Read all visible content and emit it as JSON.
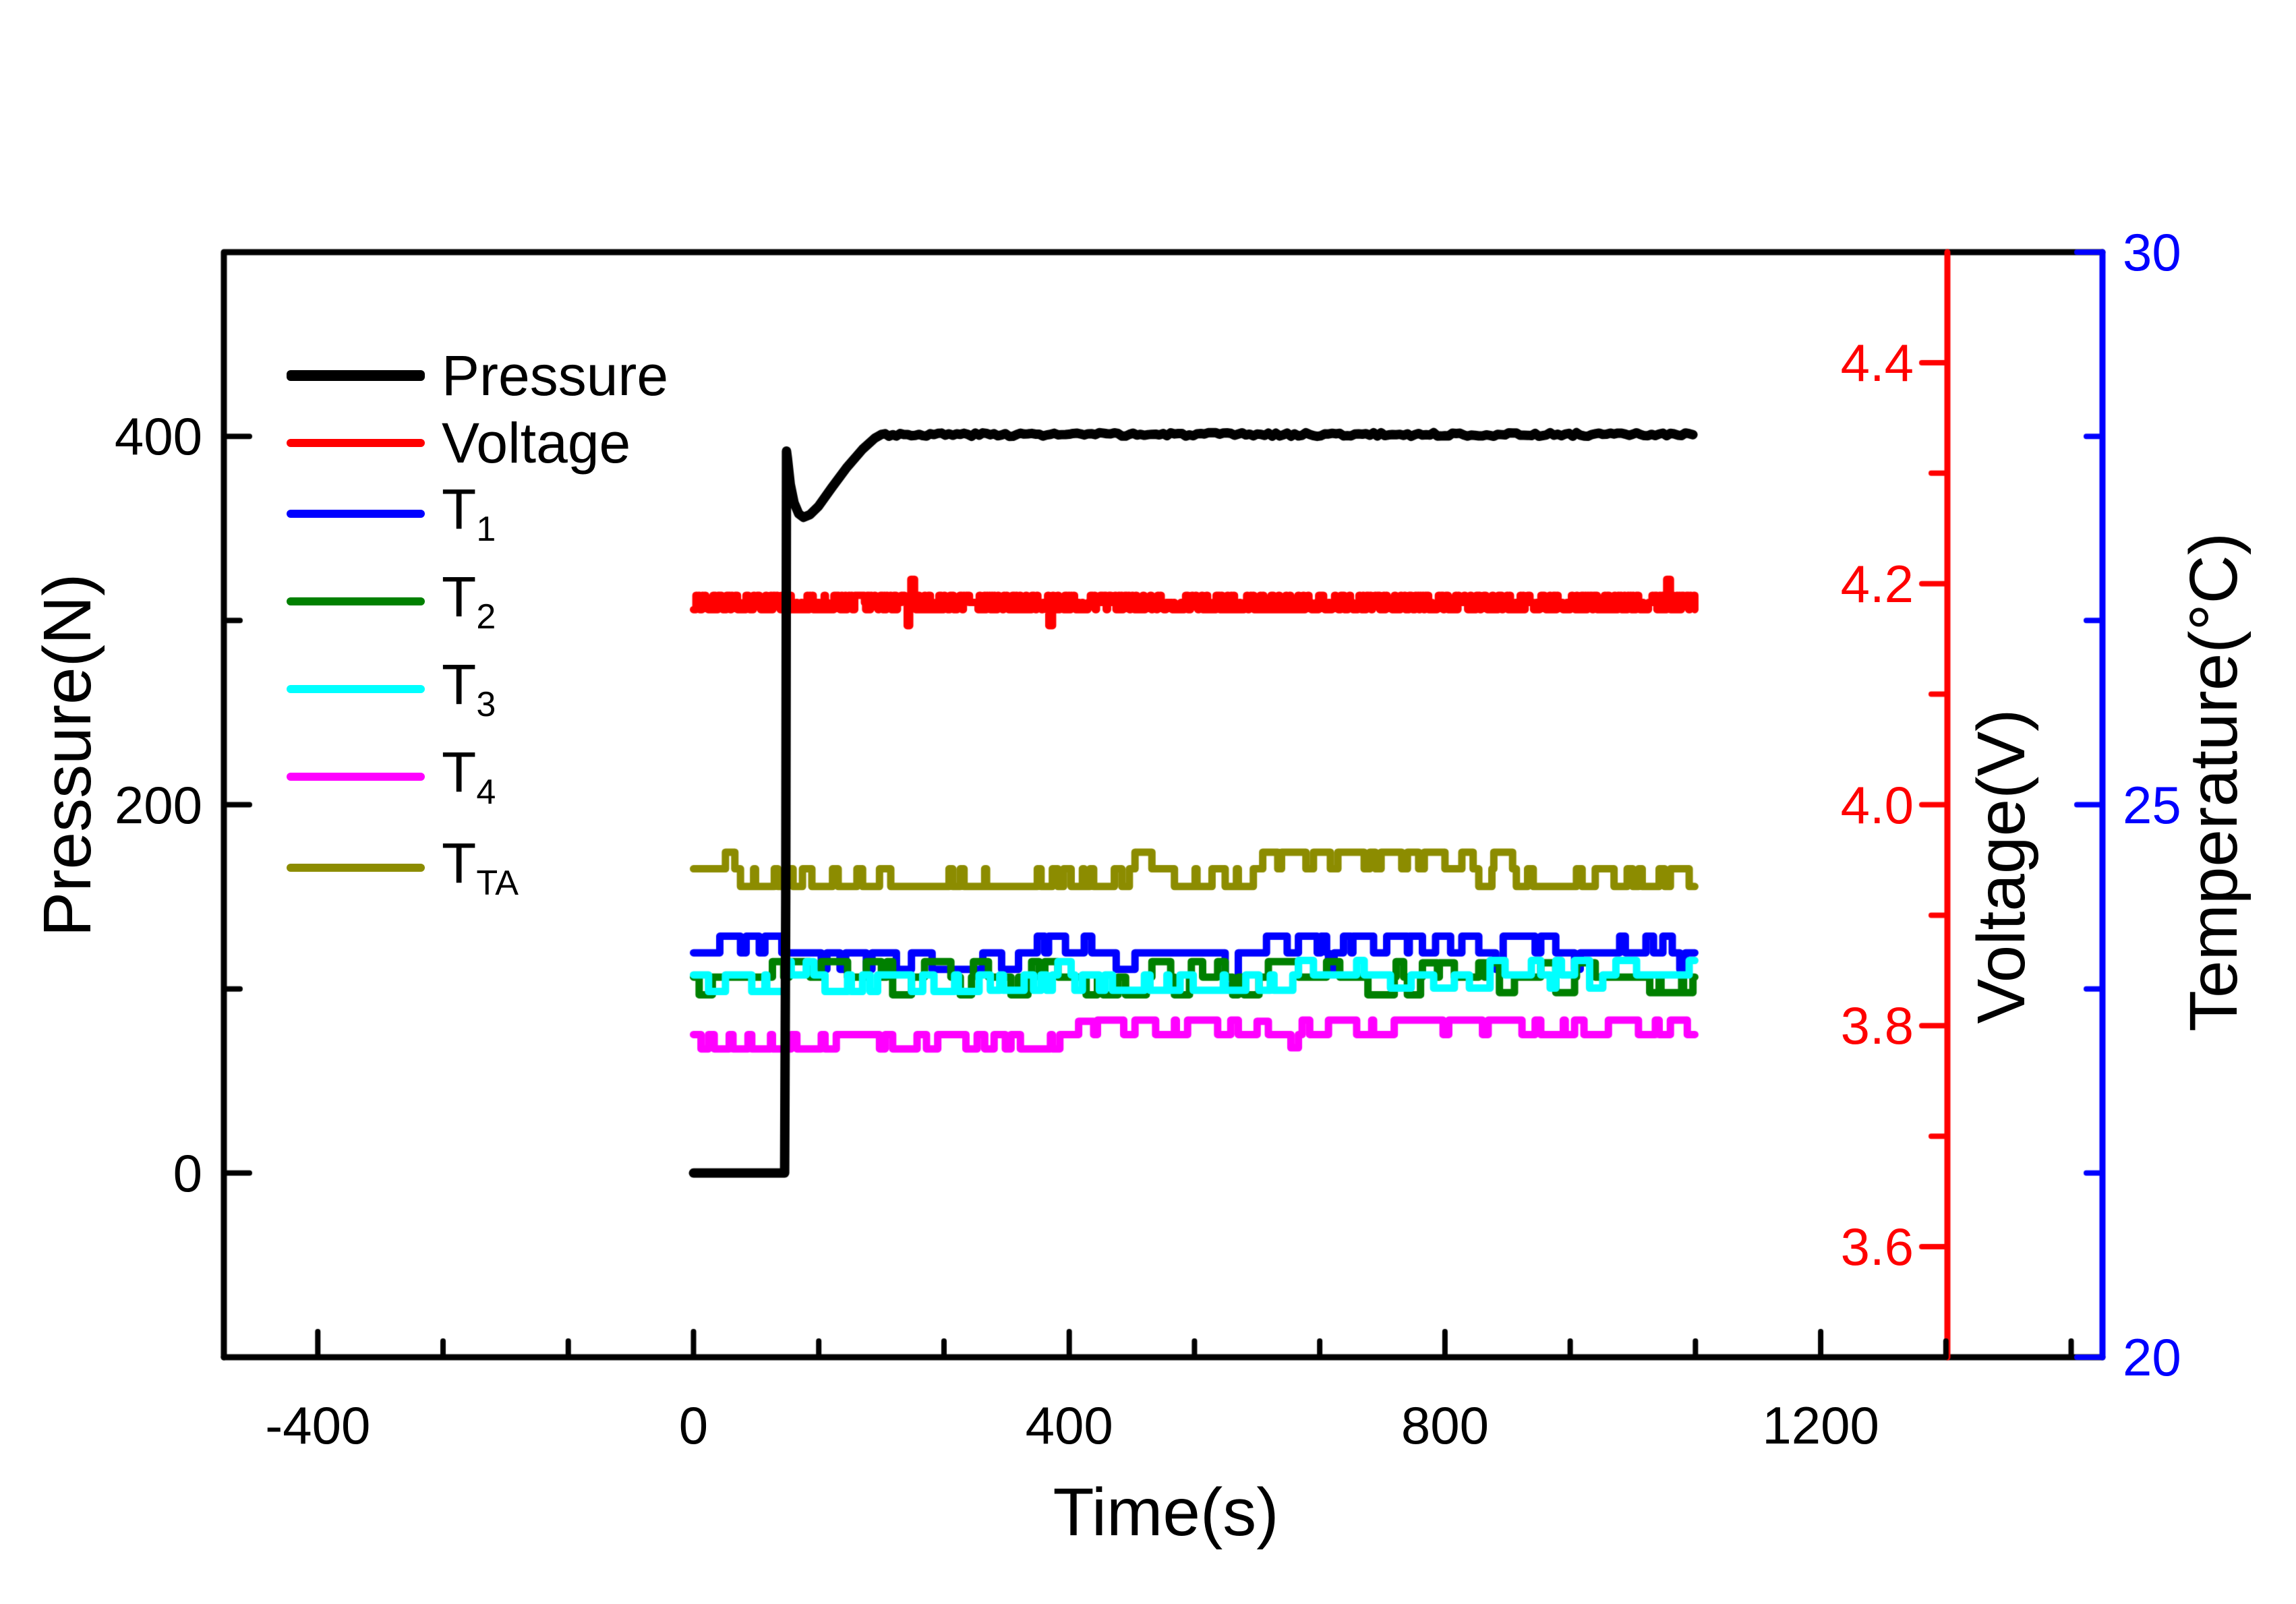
{
  "chart_data": {
    "type": "line",
    "title": "",
    "grid": false,
    "legend_position": "top-left-inside",
    "axes": {
      "x": {
        "label": "Time(s)",
        "range": [
          -500,
          1500
        ],
        "major_ticks": [
          -400,
          0,
          400,
          800,
          1200
        ],
        "tick_labels": [
          "-400",
          "0",
          "400",
          "800",
          "1200"
        ],
        "minor_divisions": 3,
        "color": "#000000"
      },
      "pressure": {
        "label": "Pressure(N)",
        "side": "left",
        "range": [
          -100,
          500
        ],
        "major_ticks": [
          0,
          200,
          400
        ],
        "tick_labels": [
          "0",
          "200",
          "400"
        ],
        "minor_ticks": [
          100,
          300
        ],
        "color": "#000000"
      },
      "voltage": {
        "label": "Voltage(V)",
        "side": "right-inner",
        "range": [
          3.5,
          4.5
        ],
        "major_ticks": [
          3.6,
          3.8,
          4.0,
          4.2,
          4.4
        ],
        "tick_labels": [
          "3.6",
          "3.8",
          "4.0",
          "4.2",
          "4.4"
        ],
        "minor_ticks": [
          3.7,
          3.9,
          4.1,
          4.3
        ],
        "color": "#FF0000"
      },
      "temperature": {
        "label": "Temperature(°C)",
        "side": "right-outer",
        "range": [
          20,
          30
        ],
        "major_ticks": [
          20,
          25,
          30
        ],
        "tick_labels": [
          "20",
          "25",
          "30"
        ],
        "minor_ticks": [
          21.667,
          23.333,
          26.667,
          28.333
        ],
        "color": "#0000FF"
      }
    },
    "legend": {
      "entries": [
        {
          "id": "pressure",
          "label": "Pressure",
          "sub": "",
          "color": "#000000",
          "swatch_thickness": 16
        },
        {
          "id": "voltage",
          "label": "Voltage",
          "sub": "",
          "color": "#FF0000",
          "swatch_thickness": 12
        },
        {
          "id": "t1",
          "label": "T",
          "sub": "1",
          "color": "#0000FF",
          "swatch_thickness": 12
        },
        {
          "id": "t2",
          "label": "T",
          "sub": "2",
          "color": "#008000",
          "swatch_thickness": 12
        },
        {
          "id": "t3",
          "label": "T",
          "sub": "3",
          "color": "#00FFFF",
          "swatch_thickness": 12
        },
        {
          "id": "t4",
          "label": "T",
          "sub": "4",
          "color": "#FF00FF",
          "swatch_thickness": 12
        },
        {
          "id": "tta",
          "label": "T",
          "sub": "TA",
          "color": "#8C8C00",
          "swatch_thickness": 12
        }
      ]
    },
    "time_range": [
      0,
      1067
    ],
    "series": [
      {
        "name": "Voltage",
        "axis": "voltage",
        "color": "#FF0000",
        "width": 11,
        "type": "quantnoise",
        "t0": 0,
        "t1": 1067,
        "dt": 1.3,
        "base": 4.183,
        "quantum": 0.0065,
        "spike": 0.021,
        "spike_p": 0.012,
        "seed": 17
      },
      {
        "name": "T1",
        "axis": "temperature",
        "color": "#0000FF",
        "width": 11,
        "type": "pulse",
        "base": 23.66,
        "dt": 2.0,
        "seed": 21,
        "segments": [
          {
            "t0": 0,
            "t1": 130,
            "p_up": 0.06,
            "up": 0.15,
            "p_down": 0.05,
            "down": 0.15
          },
          {
            "t0": 130,
            "t1": 300,
            "p_up": 0.01,
            "up": 0.15,
            "p_down": 0.09,
            "down": 0.15
          },
          {
            "t0": 300,
            "t1": 460,
            "p_up": 0.03,
            "up": 0.15,
            "p_down": 0.05,
            "down": 0.15
          },
          {
            "t0": 460,
            "t1": 560,
            "p_up": 0.1,
            "up": 0.15,
            "p_down": 0.01,
            "down": 0.15
          },
          {
            "t0": 560,
            "t1": 590,
            "p_up": 0.05,
            "up": 0.15,
            "p_down": 0.3,
            "down": 0.3
          },
          {
            "t0": 590,
            "t1": 920,
            "p_up": 0.13,
            "up": 0.15,
            "p_down": 0.03,
            "down": 0.15
          },
          {
            "t0": 920,
            "t1": 1067,
            "p_up": 0.07,
            "up": 0.15,
            "p_down": 0.04,
            "down": 0.15
          }
        ]
      },
      {
        "name": "T2",
        "axis": "temperature",
        "color": "#008000",
        "width": 11,
        "type": "pulse",
        "base": 23.44,
        "dt": 2.0,
        "seed": 33,
        "segments": [
          {
            "t0": 0,
            "t1": 60,
            "p_up": 0.05,
            "up": 0.14,
            "p_down": 0.03,
            "down": 0.16
          },
          {
            "t0": 60,
            "t1": 300,
            "p_up": 0.18,
            "up": 0.14,
            "p_down": 0.04,
            "down": 0.16
          },
          {
            "t0": 300,
            "t1": 480,
            "p_up": 0.04,
            "up": 0.14,
            "p_down": 0.14,
            "down": 0.16
          },
          {
            "t0": 480,
            "t1": 700,
            "p_up": 0.1,
            "up": 0.14,
            "p_down": 0.05,
            "down": 0.16
          },
          {
            "t0": 700,
            "t1": 770,
            "p_up": 0.02,
            "up": 0.14,
            "p_down": 0.25,
            "down": 0.16
          },
          {
            "t0": 770,
            "t1": 1067,
            "p_up": 0.09,
            "up": 0.13,
            "p_down": 0.05,
            "down": 0.14
          }
        ]
      },
      {
        "name": "T3",
        "axis": "temperature",
        "color": "#00FFFF",
        "width": 11,
        "type": "pulse",
        "base": 23.46,
        "dt": 2.0,
        "seed": 41,
        "segments": [
          {
            "t0": 0,
            "t1": 310,
            "p_up": 0.02,
            "up": 0.12,
            "p_down": 0.16,
            "down": 0.15
          },
          {
            "t0": 310,
            "t1": 620,
            "p_up": 0.02,
            "up": 0.12,
            "p_down": 0.22,
            "down": 0.14
          },
          {
            "t0": 620,
            "t1": 900,
            "p_up": 0.08,
            "up": 0.13,
            "p_down": 0.04,
            "down": 0.12
          },
          {
            "t0": 900,
            "t1": 1067,
            "p_up": 0.1,
            "up": 0.13,
            "p_down": 0.03,
            "down": 0.12
          }
        ]
      },
      {
        "name": "T4",
        "axis": "temperature",
        "color": "#FF00FF",
        "width": 11,
        "type": "pulse",
        "base": 22.92,
        "dt": 2.0,
        "seed": 55,
        "segments": [
          {
            "t0": 0,
            "t1": 430,
            "offset": 0,
            "p_up": 0.02,
            "up": 0.12,
            "p_down": 0.14,
            "down": 0.13
          },
          {
            "t0": 430,
            "t1": 600,
            "offset": 0.13,
            "p_up": 0.0,
            "up": 0.12,
            "p_down": 0.12,
            "down": 0.13
          },
          {
            "t0": 600,
            "t1": 648,
            "offset": 0,
            "p_up": 0.03,
            "up": 0.12,
            "p_down": 0.05,
            "down": 0.12
          },
          {
            "t0": 648,
            "t1": 1067,
            "offset": 0.13,
            "p_up": 0.01,
            "up": 0.1,
            "p_down": 0.1,
            "down": 0.13
          }
        ]
      },
      {
        "name": "TTA",
        "axis": "temperature",
        "color": "#8C8C00",
        "width": 11,
        "type": "pulse",
        "base": 24.42,
        "dt": 2.0,
        "seed": 67,
        "segments": [
          {
            "t0": 0,
            "t1": 45,
            "p_up": 0.06,
            "up": 0.15,
            "p_down": 0.02,
            "down": 0.16
          },
          {
            "t0": 45,
            "t1": 435,
            "p_up": 0.02,
            "up": 0.15,
            "p_down": 0.3,
            "down": 0.16
          },
          {
            "t0": 435,
            "t1": 600,
            "p_up": 0.04,
            "up": 0.15,
            "p_down": 0.08,
            "down": 0.16
          },
          {
            "t0": 600,
            "t1": 825,
            "p_up": 0.26,
            "up": 0.15,
            "p_down": 0.03,
            "down": 0.16
          },
          {
            "t0": 825,
            "t1": 1067,
            "p_up": 0.03,
            "up": 0.15,
            "p_down": 0.2,
            "down": 0.16
          }
        ]
      },
      {
        "name": "Pressure",
        "axis": "pressure",
        "color": "#000000",
        "width": 14,
        "type": "keypoints",
        "points": [
          [
            0,
            0
          ],
          [
            97,
            0
          ],
          [
            98.2,
            150
          ],
          [
            99,
            392
          ],
          [
            100,
            388
          ],
          [
            103,
            374
          ],
          [
            107,
            364
          ],
          [
            112,
            358
          ],
          [
            117,
            356
          ],
          [
            124,
            357.5
          ],
          [
            133,
            362
          ],
          [
            147,
            372
          ],
          [
            163,
            383
          ],
          [
            180,
            393
          ],
          [
            193,
            399
          ],
          [
            200,
            401
          ]
        ],
        "flat_until": 1067,
        "flat_value": 401,
        "flat_noise": 1.0,
        "seed": 3
      }
    ]
  }
}
